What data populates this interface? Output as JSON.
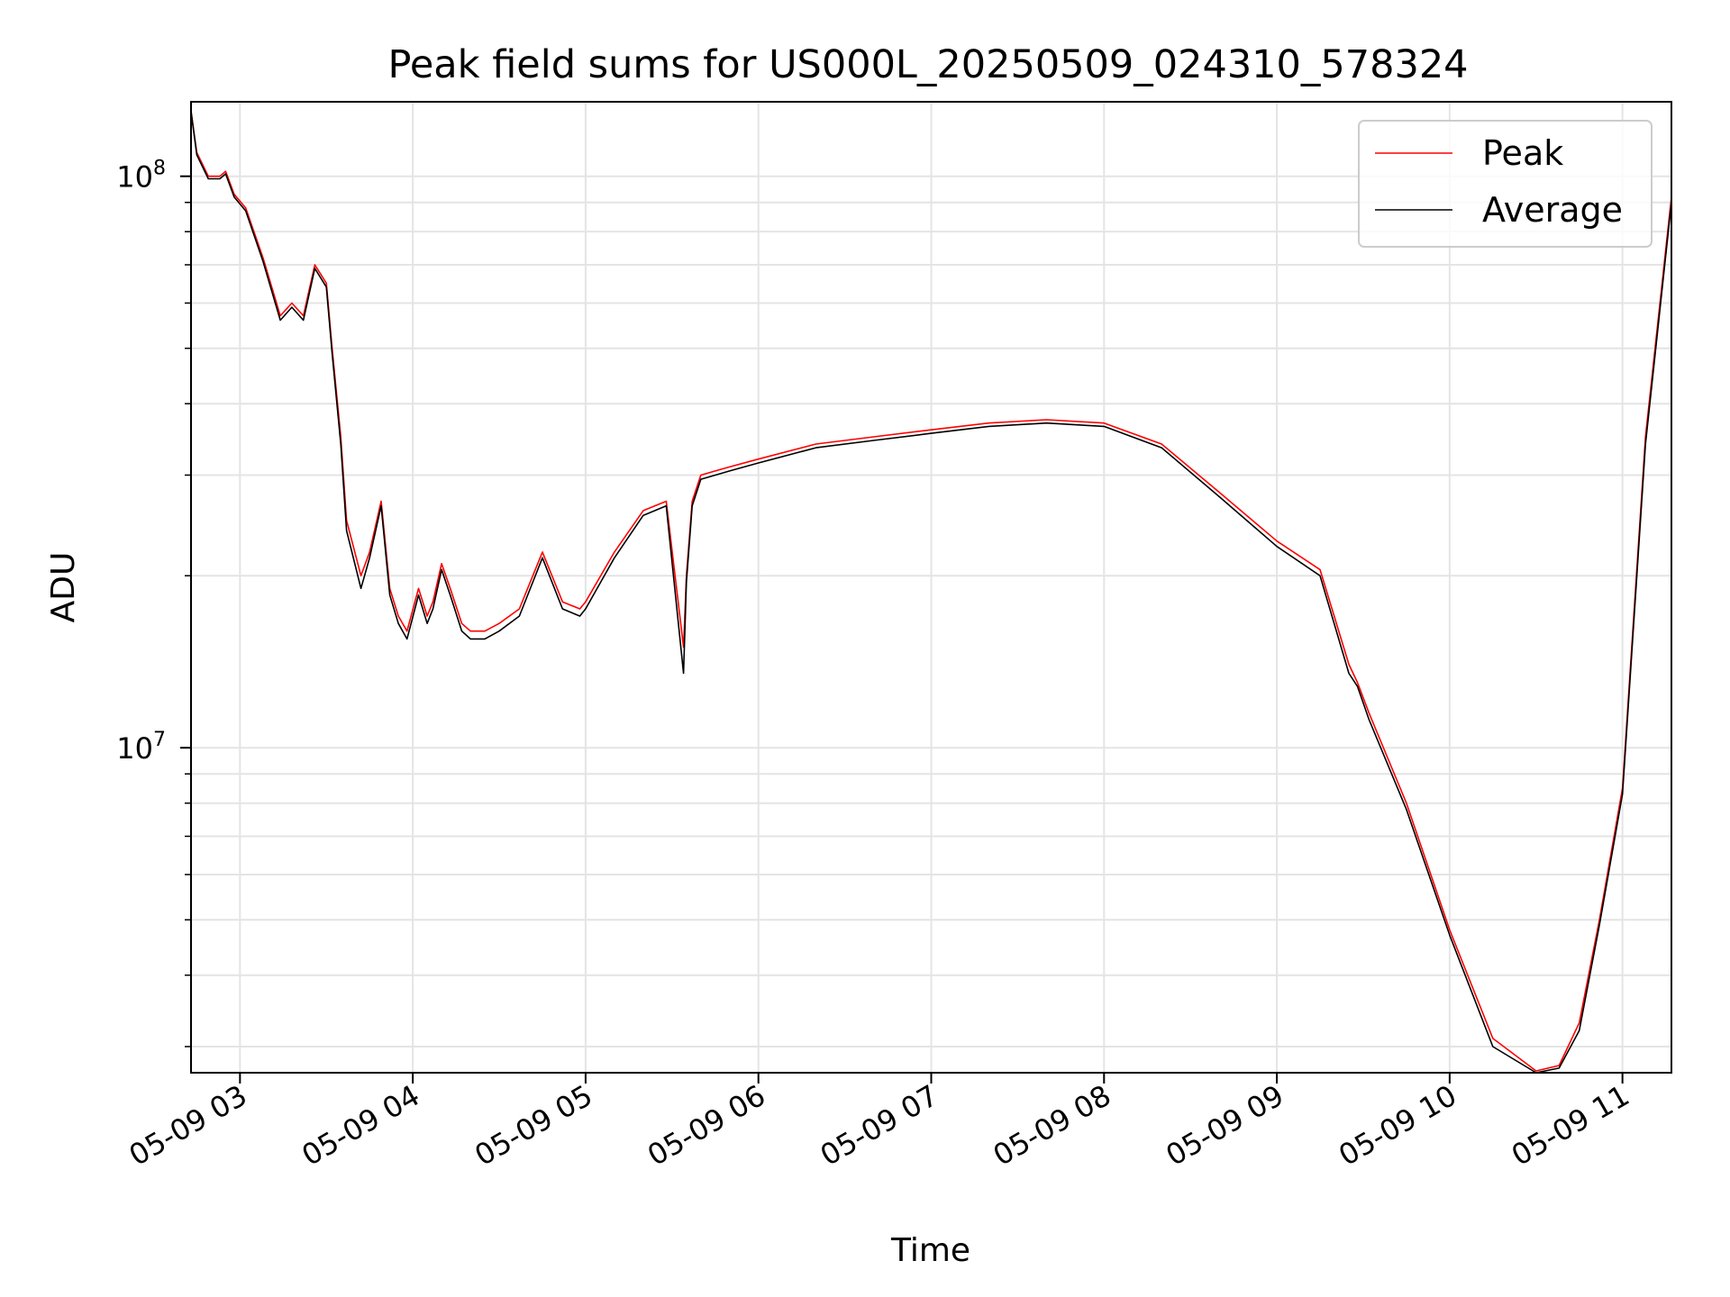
{
  "chart_data": {
    "type": "line",
    "title": "Peak field sums for US000L_20250509_024310_578324",
    "xlabel": "Time",
    "ylabel": "ADU",
    "yscale": "log",
    "xlim": [
      "05-09 02:43",
      "05-09 11:17"
    ],
    "ylim": [
      2700000,
      135000000
    ],
    "grid": true,
    "legend_position": "top-right",
    "x_ticks": [
      "05-09 03",
      "05-09 04",
      "05-09 05",
      "05-09 06",
      "05-09 07",
      "05-09 08",
      "05-09 09",
      "05-09 10",
      "05-09 11"
    ],
    "y_ticks": [
      {
        "value": 10000000,
        "label": "10",
        "exp": "7"
      },
      {
        "value": 100000000,
        "label": "10",
        "exp": "8"
      }
    ],
    "x": [
      "05-09 02:43",
      "05-09 02:45",
      "05-09 02:49",
      "05-09 02:53",
      "05-09 02:55",
      "05-09 02:58",
      "05-09 03:02",
      "05-09 03:08",
      "05-09 03:14",
      "05-09 03:18",
      "05-09 03:22",
      "05-09 03:26",
      "05-09 03:30",
      "05-09 03:32",
      "05-09 03:35",
      "05-09 03:37",
      "05-09 03:42",
      "05-09 03:45",
      "05-09 03:49",
      "05-09 03:52",
      "05-09 03:55",
      "05-09 03:58",
      "05-09 04:02",
      "05-09 04:05",
      "05-09 04:07",
      "05-09 04:10",
      "05-09 04:13",
      "05-09 04:17",
      "05-09 04:20",
      "05-09 04:25",
      "05-09 04:30",
      "05-09 04:37",
      "05-09 04:45",
      "05-09 04:52",
      "05-09 04:58",
      "05-09 05:00",
      "05-09 05:10",
      "05-09 05:20",
      "05-09 05:28",
      "05-09 05:34",
      "05-09 05:35",
      "05-09 05:37",
      "05-09 05:40",
      "05-09 05:45",
      "05-09 05:50",
      "05-09 06:00",
      "05-09 06:20",
      "05-09 06:40",
      "05-09 07:00",
      "05-09 07:20",
      "05-09 07:40",
      "05-09 08:00",
      "05-09 08:20",
      "05-09 08:40",
      "05-09 09:00",
      "05-09 09:15",
      "05-09 09:25",
      "05-09 09:28",
      "05-09 09:32",
      "05-09 09:45",
      "05-09 10:00",
      "05-09 10:15",
      "05-09 10:30",
      "05-09 10:38",
      "05-09 10:45",
      "05-09 10:52",
      "05-09 11:00",
      "05-09 11:08",
      "05-09 11:17"
    ],
    "series": [
      {
        "name": "Peak",
        "color": "#ff0000",
        "values": [
          130000000,
          110000000,
          100000000,
          100000000,
          102000000,
          93000000,
          88000000,
          72000000,
          57000000,
          60000000,
          57000000,
          70000000,
          65000000,
          50000000,
          35000000,
          25000000,
          20000000,
          22000000,
          27000000,
          19000000,
          17000000,
          16000000,
          19000000,
          17000000,
          18000000,
          21000000,
          19000000,
          16500000,
          16000000,
          16000000,
          16500000,
          17500000,
          22000000,
          18000000,
          17500000,
          18000000,
          22000000,
          26000000,
          27000000,
          15000000,
          20000000,
          27000000,
          30000000,
          30500000,
          31000000,
          32000000,
          34000000,
          35000000,
          36000000,
          37000000,
          37500000,
          37000000,
          34000000,
          28000000,
          23000000,
          20500000,
          14000000,
          13000000,
          11500000,
          8000000,
          4800000,
          3100000,
          2720000,
          2780000,
          3300000,
          5000000,
          8500000,
          35000000,
          92000000
        ]
      },
      {
        "name": "Average",
        "color": "#000000",
        "values": [
          130000000,
          109000000,
          99000000,
          99000000,
          101000000,
          92000000,
          87000000,
          71000000,
          56000000,
          59000000,
          56000000,
          69000000,
          64000000,
          49000000,
          34000000,
          24000000,
          19000000,
          21500000,
          26500000,
          18500000,
          16500000,
          15500000,
          18500000,
          16500000,
          17500000,
          20500000,
          18500000,
          16000000,
          15500000,
          15500000,
          16000000,
          17000000,
          21500000,
          17500000,
          17000000,
          17500000,
          21500000,
          25500000,
          26500000,
          13500000,
          19500000,
          26500000,
          29500000,
          30000000,
          30500000,
          31500000,
          33500000,
          34500000,
          35500000,
          36500000,
          37000000,
          36500000,
          33500000,
          27500000,
          22500000,
          20000000,
          13500000,
          12800000,
          11200000,
          7800000,
          4700000,
          3000000,
          2700000,
          2750000,
          3200000,
          4900000,
          8300000,
          34000000,
          90000000
        ]
      }
    ]
  }
}
